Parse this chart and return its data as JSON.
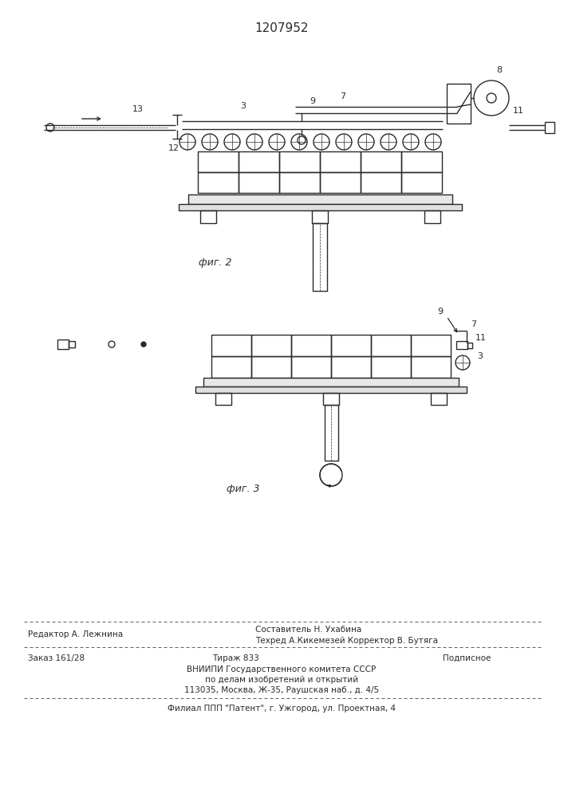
{
  "title": "1207952",
  "fig2_label": "фиг. 2",
  "fig3_label": "фиг. 3",
  "line_color": "#2a2a2a",
  "footer_line1_left": "Редактор А. Лежнина",
  "footer_line1_center": "Составитель Н. Ухабина",
  "footer_line2_center": "Техред А.Кикемезей Корректор В. Бутяга",
  "footer_line3_left": "Заказ 161/28",
  "footer_line3_center": "Тираж 833",
  "footer_line3_right": "Подписное",
  "footer_line4": "ВНИИПИ Государственного комитета СССР",
  "footer_line5": "по делам изобретений и открытий",
  "footer_line6": "113035, Москва, Ж-35, Раушская наб., д. 4/5",
  "footer_line7": "Филиал ППП \"Патент\", г. Ужгород, ул. Проектная, 4"
}
